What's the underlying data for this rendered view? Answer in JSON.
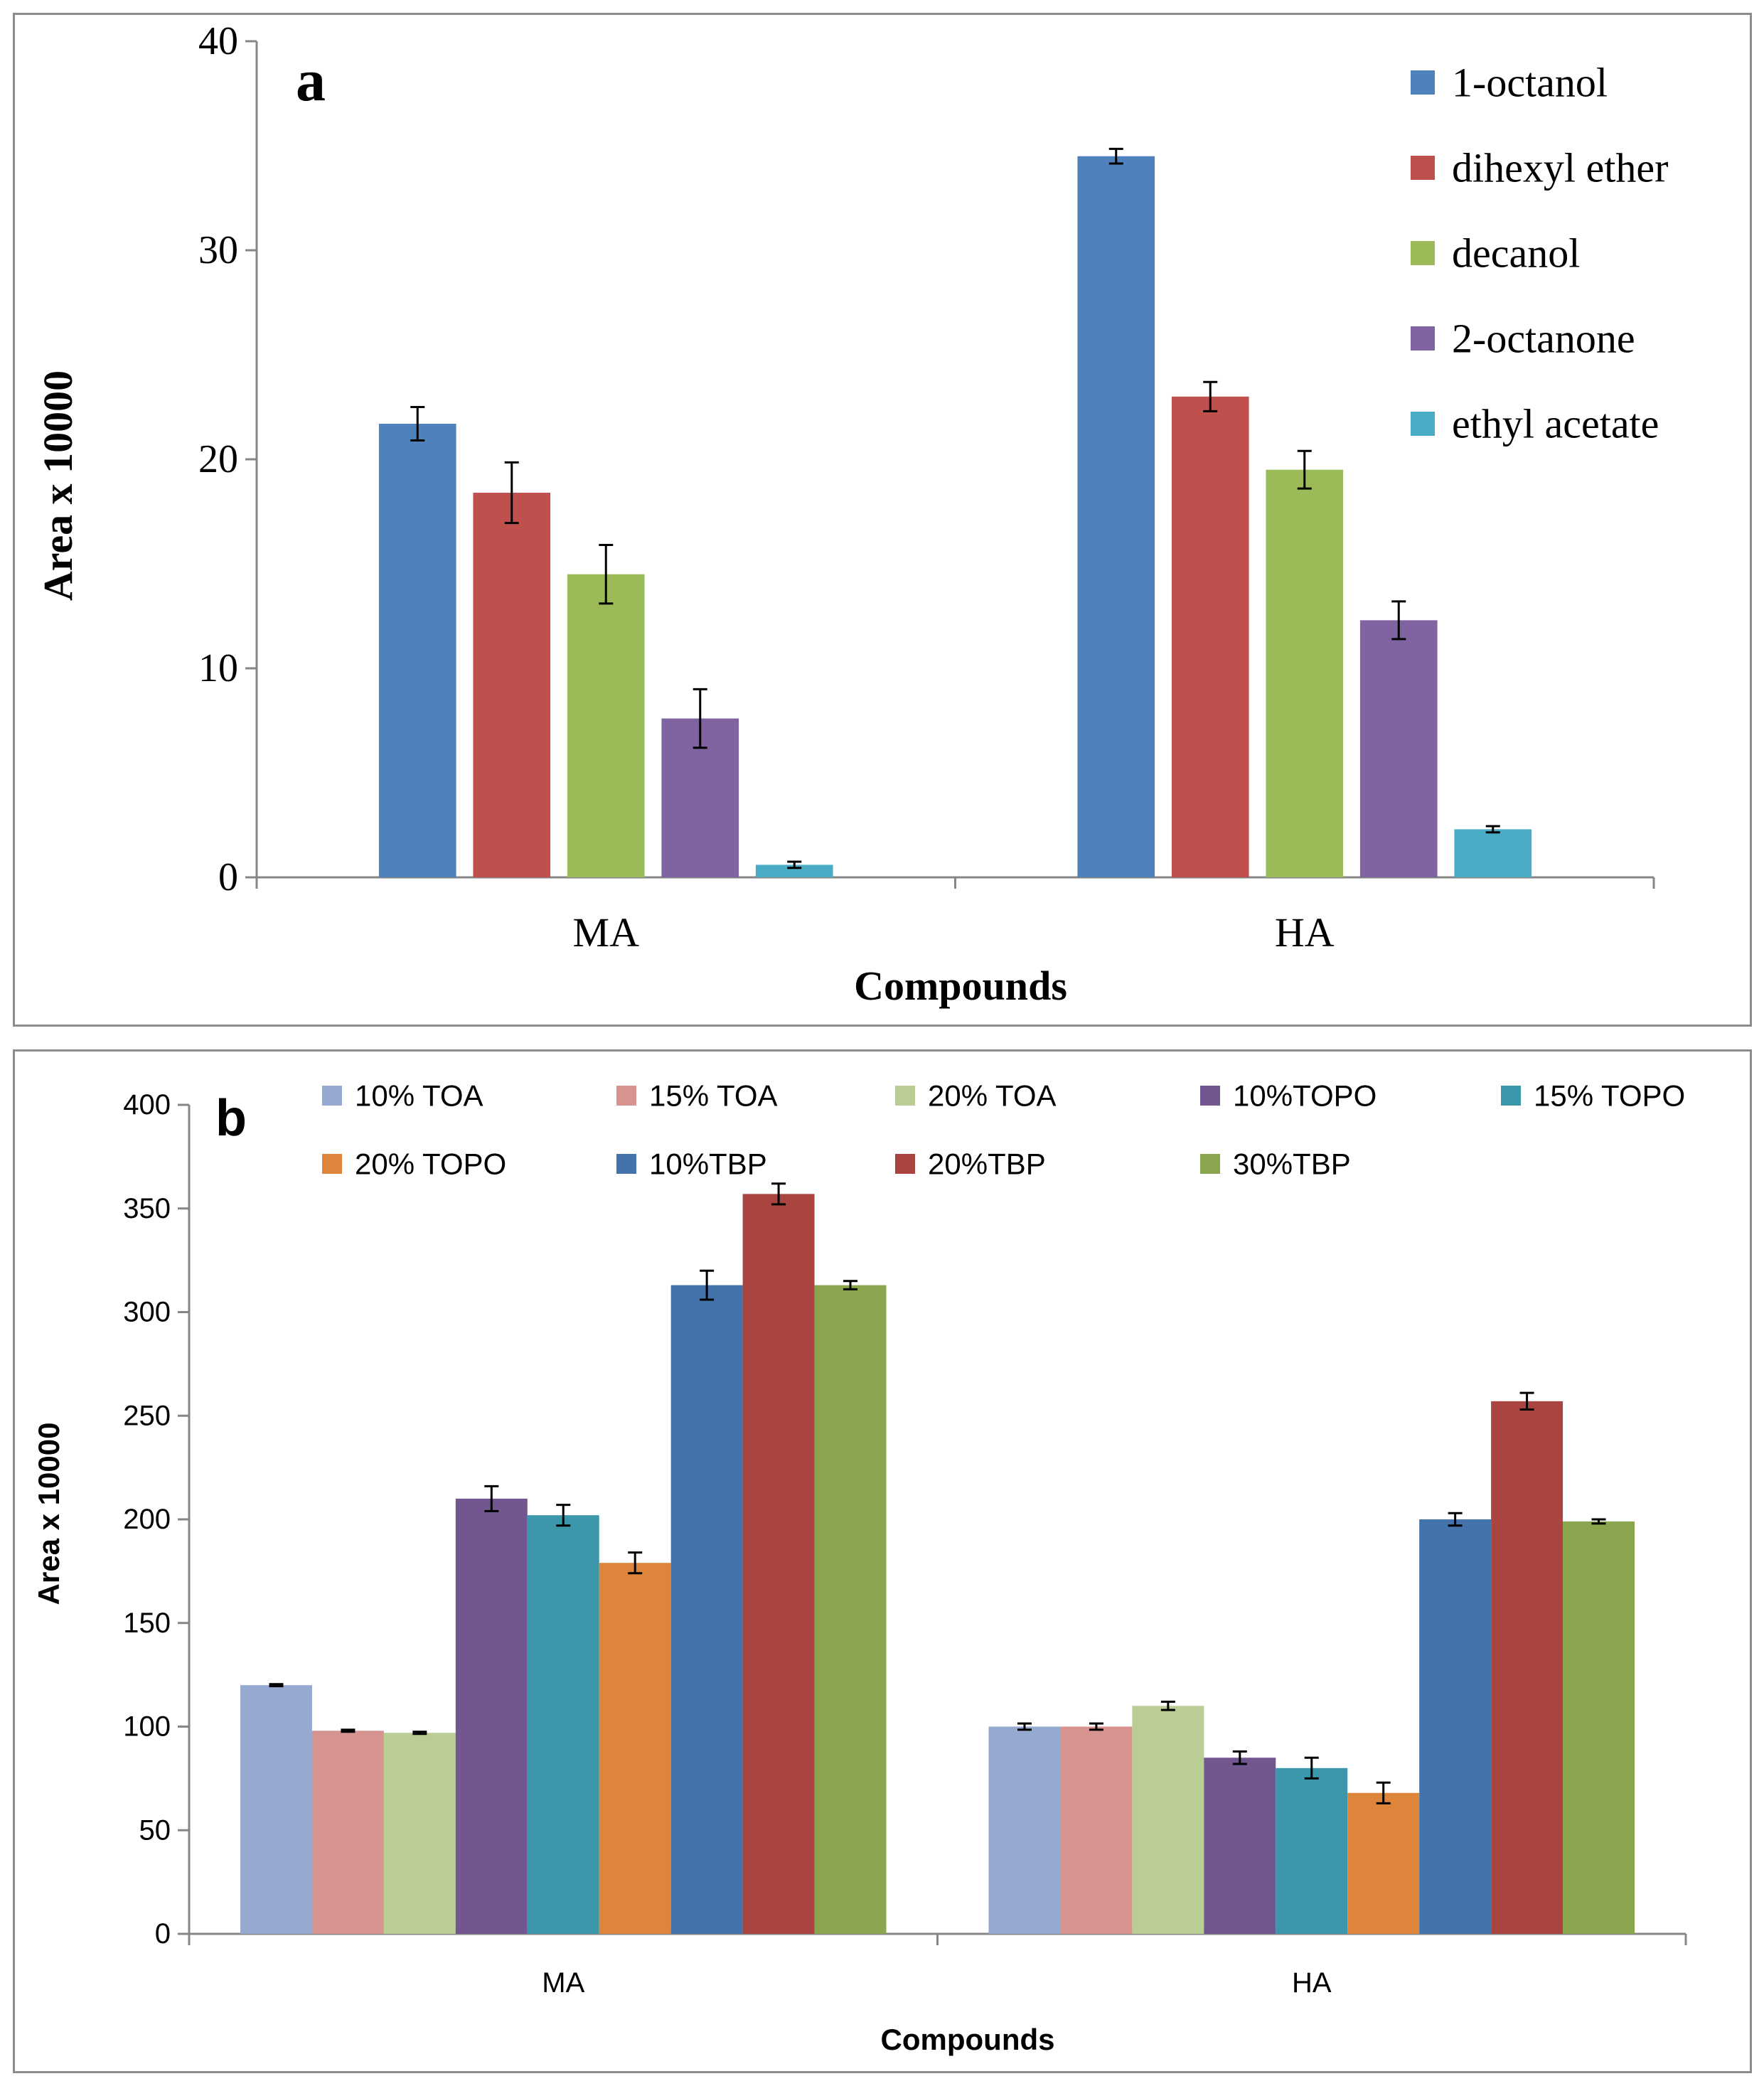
{
  "chart_data": [
    {
      "type": "bar",
      "panel_label": "a",
      "title": "",
      "xlabel": "Compounds",
      "ylabel": "Area  x 10000",
      "categories": [
        "MA",
        "HA"
      ],
      "ylim": [
        0,
        40
      ],
      "yticks": [
        "0",
        "10",
        "20",
        "30",
        "40"
      ],
      "yticks_values": [
        0,
        10,
        20,
        30,
        40
      ],
      "legend_position": "top-right",
      "series": [
        {
          "name": "1-octanol",
          "color": "#4f81bd",
          "values": [
            21.7,
            34.5
          ],
          "errors": [
            0.8,
            0.35
          ]
        },
        {
          "name": "dihexyl ether",
          "color": "#c0504d",
          "values": [
            18.4,
            23.0
          ],
          "errors": [
            1.45,
            0.7
          ]
        },
        {
          "name": "decanol",
          "color": "#9bbb59",
          "values": [
            14.5,
            19.5
          ],
          "errors": [
            1.4,
            0.9
          ]
        },
        {
          "name": "2-octanone",
          "color": "#8064a2",
          "values": [
            7.6,
            12.3
          ],
          "errors": [
            1.4,
            0.9
          ]
        },
        {
          "name": "ethyl acetate",
          "color": "#4bacc6",
          "values": [
            0.6,
            2.3
          ],
          "errors": [
            0.15,
            0.15
          ]
        }
      ]
    },
    {
      "type": "bar",
      "panel_label": "b",
      "title": "",
      "xlabel": "Compounds",
      "ylabel": "Area  x 10000",
      "categories": [
        "MA",
        "HA"
      ],
      "ylim": [
        0,
        400
      ],
      "yticks": [
        "0",
        "50",
        "100",
        "150",
        "200",
        "250",
        "300",
        "350",
        "400"
      ],
      "yticks_values": [
        0,
        50,
        100,
        150,
        200,
        250,
        300,
        350,
        400
      ],
      "legend_position": "top",
      "series": [
        {
          "name": "10% TOA",
          "color": "#95a9d1",
          "values": [
            120,
            100
          ],
          "errors": [
            0.5,
            1.5
          ]
        },
        {
          "name": "15% TOA",
          "color": "#d69390",
          "values": [
            98,
            100
          ],
          "errors": [
            0.5,
            1.5
          ]
        },
        {
          "name": "20% TOA",
          "color": "#b9cd94",
          "values": [
            97,
            110
          ],
          "errors": [
            0.5,
            2
          ]
        },
        {
          "name": "10%TOPO",
          "color": "#725690",
          "values": [
            210,
            85
          ],
          "errors": [
            6,
            3
          ]
        },
        {
          "name": "15% TOPO",
          "color": "#3d97ab",
          "values": [
            202,
            80
          ],
          "errors": [
            5,
            5
          ]
        },
        {
          "name": "20% TOPO",
          "color": "#de853c",
          "values": [
            179,
            68
          ],
          "errors": [
            5,
            5
          ]
        },
        {
          "name": "10%TBP",
          "color": "#4373aa",
          "values": [
            313,
            200
          ],
          "errors": [
            7,
            3
          ]
        },
        {
          "name": "20%TBP",
          "color": "#a94441",
          "values": [
            357,
            257
          ],
          "errors": [
            5,
            4
          ]
        },
        {
          "name": "30%TBP",
          "color": "#89a54e",
          "values": [
            313,
            199
          ],
          "errors": [
            2,
            1
          ]
        }
      ]
    }
  ]
}
